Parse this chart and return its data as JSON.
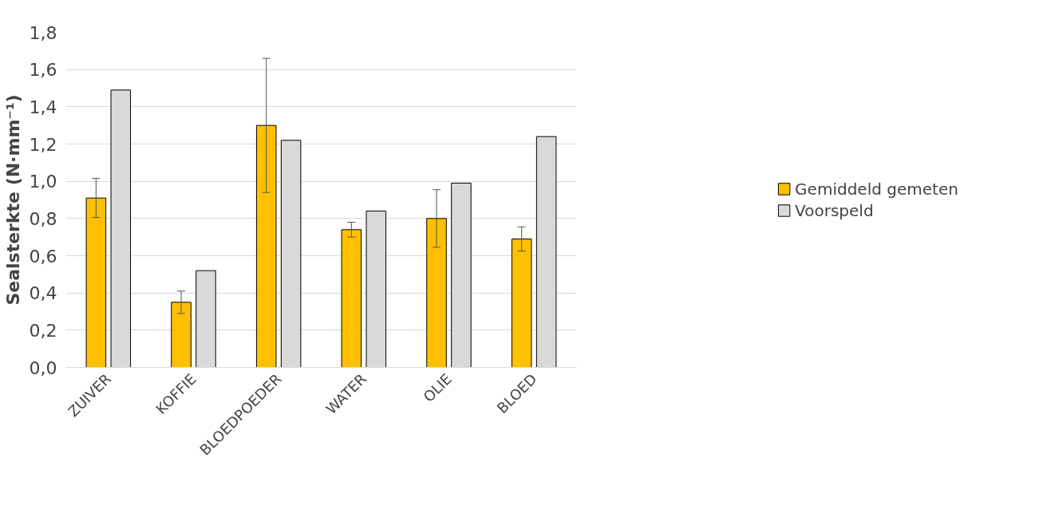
{
  "chart_data": {
    "type": "bar",
    "ylabel": "Sealsterkte (N·mm⁻¹)",
    "categories": [
      "ZUIVER",
      "KOFFIE",
      "BLOEDPOEDER",
      "WATER",
      "OLIE",
      "BLOED"
    ],
    "series": [
      {
        "name": "Gemiddeld gemeten",
        "color": "#ffc000",
        "values": [
          0.91,
          0.35,
          1.3,
          0.74,
          0.8,
          0.69
        ],
        "errors": [
          0.105,
          0.06,
          0.36,
          0.04,
          0.155,
          0.065
        ]
      },
      {
        "name": "Voorspeld",
        "color": "#d9d9d9",
        "values": [
          1.49,
          0.52,
          1.22,
          0.84,
          0.99,
          1.24
        ]
      }
    ],
    "ylim": [
      0,
      1.8
    ],
    "yticks": [
      {
        "value": 0,
        "label": "0,0"
      },
      {
        "value": 0.2,
        "label": "0,2"
      },
      {
        "value": 0.4,
        "label": "0,4"
      },
      {
        "value": 0.6,
        "label": "0,6"
      },
      {
        "value": 0.8,
        "label": "0,8"
      },
      {
        "value": 1.0,
        "label": "1,0"
      },
      {
        "value": 1.2,
        "label": "1,2"
      },
      {
        "value": 1.4,
        "label": "1,4"
      },
      {
        "value": 1.6,
        "label": "1,6"
      },
      {
        "value": 1.8,
        "label": "1,8"
      }
    ],
    "grid": "y",
    "legend": "right"
  }
}
